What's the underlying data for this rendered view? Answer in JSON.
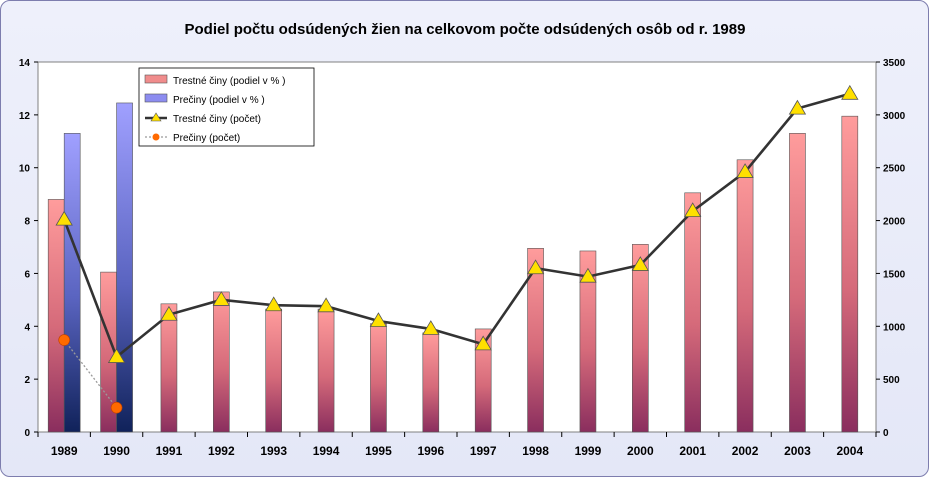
{
  "chart_data": {
    "type": "bar",
    "title": "Podiel počtu odsúdených žien na celkovom počte odsúdených osôb od r. 1989",
    "categories": [
      "1989",
      "1990",
      "1991",
      "1992",
      "1993",
      "1994",
      "1995",
      "1996",
      "1997",
      "1998",
      "1999",
      "2000",
      "2001",
      "2002",
      "2003",
      "2004"
    ],
    "y_left": {
      "min": 0,
      "max": 14,
      "step": 2
    },
    "y_right": {
      "min": 0,
      "max": 3500,
      "step": 500
    },
    "legend_position": "top-left",
    "grid": false,
    "series": [
      {
        "name": "Trestné činy (podiel v % )",
        "kind": "bar",
        "axis": "left",
        "color": "#f08c8c",
        "values": [
          8.8,
          6.05,
          4.85,
          5.3,
          4.65,
          4.65,
          4.1,
          3.75,
          3.9,
          6.95,
          6.85,
          7.1,
          9.05,
          10.3,
          11.3,
          11.95
        ]
      },
      {
        "name": "Prečiny (podiel v % )",
        "kind": "bar",
        "axis": "left",
        "color": "#8c8cf0",
        "values": [
          11.3,
          12.45,
          null,
          null,
          null,
          null,
          null,
          null,
          null,
          null,
          null,
          null,
          null,
          null,
          null,
          null
        ]
      },
      {
        "name": "Trestné činy (počet)",
        "kind": "line",
        "axis": "right",
        "color": "#333333",
        "marker": "triangle",
        "marker_color": "#ffe000",
        "values": [
          2010,
          710,
          1110,
          1250,
          1200,
          1190,
          1050,
          975,
          830,
          1550,
          1470,
          1580,
          2090,
          2460,
          3060,
          3200
        ]
      },
      {
        "name": "Prečiny (počet)",
        "kind": "line",
        "axis": "right",
        "color": "#aaaaaa",
        "marker": "circle",
        "marker_color": "#ff6a00",
        "values": [
          870,
          230,
          null,
          null,
          null,
          null,
          null,
          null,
          null,
          null,
          null,
          null,
          null,
          null,
          null,
          null
        ]
      }
    ]
  }
}
